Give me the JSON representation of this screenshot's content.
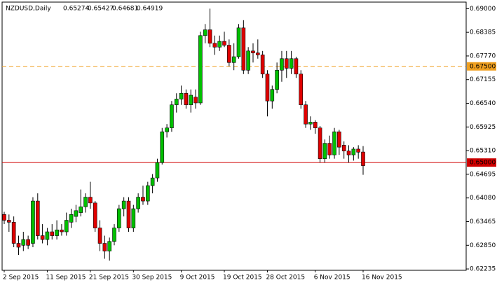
{
  "chart_data": {
    "type": "candlestick",
    "symbol": "NZDUSD,Daily",
    "ylim": [
      0.622,
      0.6917
    ],
    "yticks": [
      {
        "value": 0.69,
        "label": "0.69000"
      },
      {
        "value": 0.68385,
        "label": "0.68385"
      },
      {
        "value": 0.6777,
        "label": "0.67770"
      },
      {
        "value": 0.67155,
        "label": "0.67155"
      },
      {
        "value": 0.6654,
        "label": "0.66540"
      },
      {
        "value": 0.65925,
        "label": "0.65925"
      },
      {
        "value": 0.6531,
        "label": "0.65310"
      },
      {
        "value": 0.64695,
        "label": "0.64695"
      },
      {
        "value": 0.6408,
        "label": "0.64080"
      },
      {
        "value": 0.63465,
        "label": "0.63465"
      },
      {
        "value": 0.6285,
        "label": "0.62850"
      },
      {
        "value": 0.62235,
        "label": "0.62235"
      }
    ],
    "levels": [
      {
        "value": 0.675,
        "label": "0.67500",
        "color": "#f0a020",
        "dashed": true
      },
      {
        "value": 0.65,
        "label": "0.65000",
        "color": "#d00000",
        "dashed": false
      }
    ],
    "up_color": "#00c000",
    "down_color": "#e00000",
    "categories": [
      "2 Sep 2015",
      null,
      null,
      null,
      null,
      null,
      null,
      null,
      null,
      "11 Sep 2015",
      null,
      null,
      null,
      null,
      null,
      null,
      null,
      null,
      "21 Sep 2015",
      null,
      null,
      null,
      null,
      null,
      null,
      null,
      null,
      "30 Sep 2015",
      null,
      null,
      null,
      null,
      null,
      null,
      null,
      null,
      null,
      "9 Oct 2015",
      null,
      null,
      null,
      null,
      null,
      null,
      null,
      null,
      "19 Oct 2015",
      null,
      null,
      null,
      null,
      null,
      null,
      null,
      null,
      "28 Oct 2015",
      null,
      null,
      null,
      null,
      null,
      null,
      null,
      null,
      null,
      "6 Nov 2015",
      null,
      null,
      null,
      null,
      null,
      null,
      null,
      null,
      null,
      "16 Nov 2015"
    ],
    "open": [
      0.6365,
      0.635,
      0.6345,
      0.629,
      0.6285,
      0.63,
      0.629,
      0.64,
      0.631,
      0.63,
      0.632,
      0.631,
      0.6325,
      0.632,
      0.6345,
      0.636,
      0.637,
      0.6385,
      0.641,
      0.6395,
      0.633,
      0.629,
      0.627,
      0.6295,
      0.633,
      0.638,
      0.64,
      0.633,
      0.638,
      0.641,
      0.64,
      0.644,
      0.646,
      0.65,
      0.658,
      0.659,
      0.665,
      0.6665,
      0.668,
      0.665,
      0.667,
      0.6655,
      0.683,
      0.6845,
      0.681,
      0.68,
      0.6815,
      0.6805,
      0.676,
      0.6775,
      0.685,
      0.674,
      0.679,
      0.6785,
      0.678,
      0.673,
      0.666,
      0.669,
      0.674,
      0.677,
      0.6745,
      0.677,
      0.673,
      0.665,
      0.66,
      0.6605,
      0.659,
      0.651,
      0.655,
      0.652,
      0.658,
      0.6545,
      0.653,
      0.652,
      0.6535,
      0.65274
    ],
    "high": [
      0.6372,
      0.6365,
      0.636,
      0.631,
      0.632,
      0.631,
      0.641,
      0.642,
      0.634,
      0.633,
      0.634,
      0.635,
      0.634,
      0.637,
      0.638,
      0.639,
      0.643,
      0.642,
      0.645,
      0.64,
      0.635,
      0.631,
      0.6305,
      0.634,
      0.639,
      0.641,
      0.641,
      0.639,
      0.642,
      0.644,
      0.645,
      0.647,
      0.651,
      0.659,
      0.66,
      0.666,
      0.668,
      0.67,
      0.669,
      0.669,
      0.669,
      0.684,
      0.686,
      0.69,
      0.683,
      0.683,
      0.684,
      0.682,
      0.681,
      0.686,
      0.687,
      0.68,
      0.681,
      0.682,
      0.679,
      0.674,
      0.67,
      0.676,
      0.679,
      0.679,
      0.679,
      0.6775,
      0.674,
      0.666,
      0.662,
      0.661,
      0.6595,
      0.656,
      0.657,
      0.659,
      0.6585,
      0.6555,
      0.6545,
      0.654,
      0.6545,
      0.65427
    ],
    "low": [
      0.634,
      0.632,
      0.628,
      0.626,
      0.627,
      0.6275,
      0.628,
      0.63,
      0.629,
      0.6285,
      0.63,
      0.63,
      0.631,
      0.631,
      0.633,
      0.6345,
      0.636,
      0.637,
      0.638,
      0.632,
      0.627,
      0.625,
      0.6245,
      0.6285,
      0.632,
      0.636,
      0.632,
      0.632,
      0.637,
      0.639,
      0.639,
      0.642,
      0.645,
      0.6495,
      0.6565,
      0.658,
      0.663,
      0.665,
      0.664,
      0.663,
      0.664,
      0.665,
      0.681,
      0.68,
      0.678,
      0.679,
      0.68,
      0.675,
      0.674,
      0.677,
      0.673,
      0.673,
      0.676,
      0.677,
      0.672,
      0.662,
      0.664,
      0.668,
      0.671,
      0.672,
      0.673,
      0.672,
      0.664,
      0.659,
      0.6585,
      0.6575,
      0.65,
      0.65,
      0.651,
      0.651,
      0.652,
      0.651,
      0.65,
      0.6505,
      0.651,
      0.64681
    ],
    "close": [
      0.635,
      0.6345,
      0.629,
      0.628,
      0.63,
      0.6285,
      0.64,
      0.631,
      0.63,
      0.632,
      0.631,
      0.6325,
      0.632,
      0.635,
      0.6365,
      0.6375,
      0.6385,
      0.641,
      0.6395,
      0.633,
      0.629,
      0.627,
      0.6295,
      0.633,
      0.638,
      0.64,
      0.633,
      0.638,
      0.641,
      0.64,
      0.644,
      0.646,
      0.65,
      0.658,
      0.659,
      0.665,
      0.6665,
      0.668,
      0.665,
      0.6675,
      0.6655,
      0.683,
      0.6845,
      0.681,
      0.68,
      0.6815,
      0.6805,
      0.676,
      0.6775,
      0.685,
      0.674,
      0.679,
      0.6785,
      0.678,
      0.673,
      0.666,
      0.669,
      0.674,
      0.677,
      0.6745,
      0.677,
      0.673,
      0.665,
      0.66,
      0.6605,
      0.659,
      0.651,
      0.655,
      0.652,
      0.658,
      0.654,
      0.653,
      0.652,
      0.6535,
      0.6527,
      0.64919
    ]
  }
}
